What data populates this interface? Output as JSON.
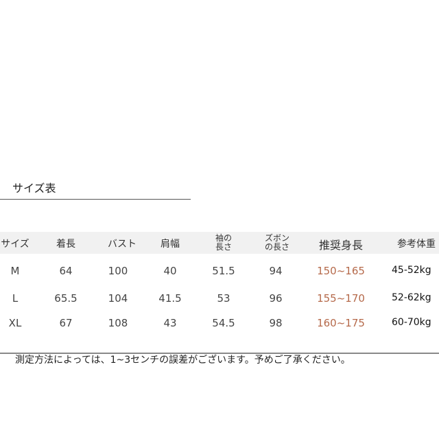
{
  "title": "サイズ表",
  "headers": [
    "サイズ",
    "着長",
    "バスト",
    "肩幅",
    "袖の長さ",
    "ズボンの長さ",
    "推奨身長",
    "参考体重"
  ],
  "header_lines": {
    "sleeve": [
      "袖の",
      "長さ"
    ],
    "pants": [
      "ズボン",
      "の長さ"
    ]
  },
  "rows": [
    {
      "size": "M",
      "length": "64",
      "bust": "100",
      "shoulder": "40",
      "sleeve": "51.5",
      "pants": "94",
      "height": "150~165",
      "weight": "45-52kg"
    },
    {
      "size": "L",
      "length": "65.5",
      "bust": "104",
      "shoulder": "41.5",
      "sleeve": "53",
      "pants": "96",
      "height": "155~170",
      "weight": "52-62kg"
    },
    {
      "size": "XL",
      "length": "67",
      "bust": "108",
      "shoulder": "43",
      "sleeve": "54.5",
      "pants": "98",
      "height": "160~175",
      "weight": "60-70kg"
    }
  ],
  "note": "測定方法によっては、1~3センチの誤差がございます。予めご了承ください。",
  "colors": {
    "height_text": "#b5694a",
    "header_bg": "#f1f1f1"
  }
}
